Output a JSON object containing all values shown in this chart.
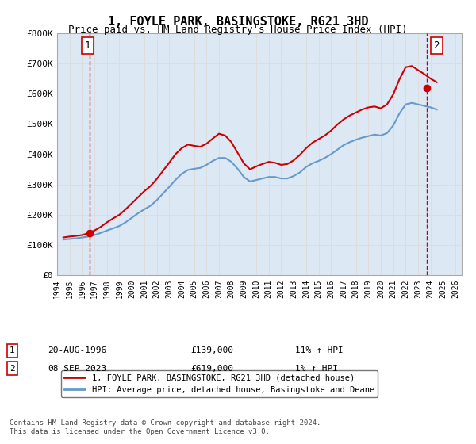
{
  "title": "1, FOYLE PARK, BASINGSTOKE, RG21 3HD",
  "subtitle": "Price paid vs. HM Land Registry's House Price Index (HPI)",
  "xlabel": "",
  "ylabel": "",
  "ylim": [
    0,
    800000
  ],
  "yticks": [
    0,
    100000,
    200000,
    300000,
    400000,
    500000,
    600000,
    700000,
    800000
  ],
  "ytick_labels": [
    "£0",
    "£100K",
    "£200K",
    "£300K",
    "£400K",
    "£500K",
    "£600K",
    "£700K",
    "£800K"
  ],
  "xlim_start": 1994.0,
  "xlim_end": 2026.5,
  "hpi_color": "#6699cc",
  "price_color": "#cc0000",
  "hatch_color": "#cccccc",
  "grid_color": "#dddddd",
  "bg_color": "#dce9f5",
  "sale1_x": 1996.617,
  "sale1_y": 139000,
  "sale2_x": 2023.683,
  "sale2_y": 619000,
  "legend_line1": "1, FOYLE PARK, BASINGSTOKE, RG21 3HD (detached house)",
  "legend_line2": "HPI: Average price, detached house, Basingstoke and Deane",
  "annot1_date": "20-AUG-1996",
  "annot1_price": "£139,000",
  "annot1_hpi": "11% ↑ HPI",
  "annot2_date": "08-SEP-2023",
  "annot2_price": "£619,000",
  "annot2_hpi": "1% ↑ HPI",
  "footer": "Contains HM Land Registry data © Crown copyright and database right 2024.\nThis data is licensed under the Open Government Licence v3.0.",
  "hpi_years": [
    1994.5,
    1995.0,
    1995.5,
    1996.0,
    1996.5,
    1997.0,
    1997.5,
    1998.0,
    1998.5,
    1999.0,
    1999.5,
    2000.0,
    2000.5,
    2001.0,
    2001.5,
    2002.0,
    2002.5,
    2003.0,
    2003.5,
    2004.0,
    2004.5,
    2005.0,
    2005.5,
    2006.0,
    2006.5,
    2007.0,
    2007.5,
    2008.0,
    2008.5,
    2009.0,
    2009.5,
    2010.0,
    2010.5,
    2011.0,
    2011.5,
    2012.0,
    2012.5,
    2013.0,
    2013.5,
    2014.0,
    2014.5,
    2015.0,
    2015.5,
    2016.0,
    2016.5,
    2017.0,
    2017.5,
    2018.0,
    2018.5,
    2019.0,
    2019.5,
    2020.0,
    2020.5,
    2021.0,
    2021.5,
    2022.0,
    2022.5,
    2023.0,
    2023.5,
    2024.0,
    2024.5
  ],
  "hpi_values": [
    118000,
    120000,
    122000,
    125000,
    128000,
    133000,
    140000,
    148000,
    155000,
    163000,
    175000,
    190000,
    205000,
    218000,
    230000,
    248000,
    270000,
    292000,
    315000,
    335000,
    348000,
    352000,
    355000,
    365000,
    378000,
    388000,
    388000,
    375000,
    352000,
    325000,
    310000,
    315000,
    320000,
    325000,
    325000,
    320000,
    320000,
    328000,
    340000,
    358000,
    370000,
    378000,
    388000,
    400000,
    415000,
    430000,
    440000,
    448000,
    455000,
    460000,
    465000,
    462000,
    470000,
    495000,
    535000,
    565000,
    570000,
    565000,
    560000,
    555000,
    548000
  ],
  "price_years": [
    1994.5,
    1995.0,
    1995.5,
    1996.0,
    1996.5,
    1997.0,
    1997.5,
    1998.0,
    1998.5,
    1999.0,
    1999.5,
    2000.0,
    2000.5,
    2001.0,
    2001.5,
    2002.0,
    2002.5,
    2003.0,
    2003.5,
    2004.0,
    2004.5,
    2005.0,
    2005.5,
    2006.0,
    2006.5,
    2007.0,
    2007.5,
    2008.0,
    2008.5,
    2009.0,
    2009.5,
    2010.0,
    2010.5,
    2011.0,
    2011.5,
    2012.0,
    2012.5,
    2013.0,
    2013.5,
    2014.0,
    2014.5,
    2015.0,
    2015.5,
    2016.0,
    2016.5,
    2017.0,
    2017.5,
    2018.0,
    2018.5,
    2019.0,
    2019.5,
    2020.0,
    2020.5,
    2021.0,
    2021.5,
    2022.0,
    2022.5,
    2023.0,
    2023.5,
    2024.0,
    2024.5
  ],
  "price_values": [
    125000,
    128000,
    130000,
    133000,
    139000,
    148000,
    160000,
    175000,
    188000,
    200000,
    218000,
    238000,
    258000,
    278000,
    295000,
    318000,
    345000,
    372000,
    400000,
    420000,
    432000,
    428000,
    425000,
    435000,
    452000,
    468000,
    462000,
    440000,
    405000,
    370000,
    350000,
    360000,
    368000,
    375000,
    372000,
    365000,
    368000,
    380000,
    398000,
    420000,
    438000,
    450000,
    462000,
    478000,
    498000,
    515000,
    528000,
    538000,
    548000,
    555000,
    558000,
    552000,
    565000,
    598000,
    648000,
    688000,
    692000,
    678000,
    665000,
    650000,
    638000
  ]
}
